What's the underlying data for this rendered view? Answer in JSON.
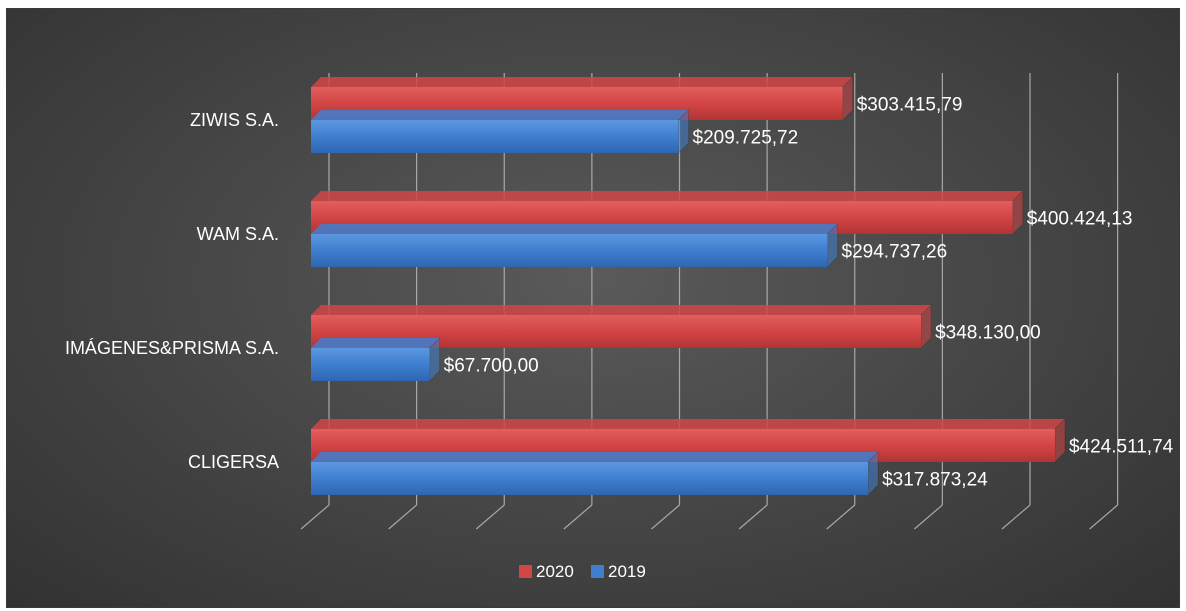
{
  "chart_data": {
    "type": "bar",
    "orientation": "horizontal",
    "style": "3d-clustered",
    "categories": [
      "CLIGERSA",
      "IMÁGENES&PRISMA S.A.",
      "WAM S.A.",
      "ZIWIS S.A."
    ],
    "series": [
      {
        "name": "2019",
        "color": "#3f7fd0",
        "values": [
          317873.24,
          67700.0,
          294737.26,
          209725.72
        ],
        "labels": [
          "$317.873,24",
          "$67.700,00",
          "$294.737,26",
          "$209.725,72"
        ]
      },
      {
        "name": "2020",
        "color": "#d24545",
        "values": [
          424511.74,
          348130.0,
          400424.13,
          303415.79
        ],
        "labels": [
          "$424.511,74",
          "$348.130,00",
          "$400.424,13",
          "$303.415,79"
        ]
      }
    ],
    "xlim": [
      0,
      450000
    ],
    "x_major_unit": 50000,
    "grid": true,
    "legend": {
      "position": "bottom",
      "entries": [
        {
          "name": "2020",
          "color": "#d24545"
        },
        {
          "name": "2019",
          "color": "#3f7fd0"
        }
      ]
    },
    "background": "#484848",
    "gridline_color": "#a8a8a8",
    "label_color": "#ffffff"
  }
}
